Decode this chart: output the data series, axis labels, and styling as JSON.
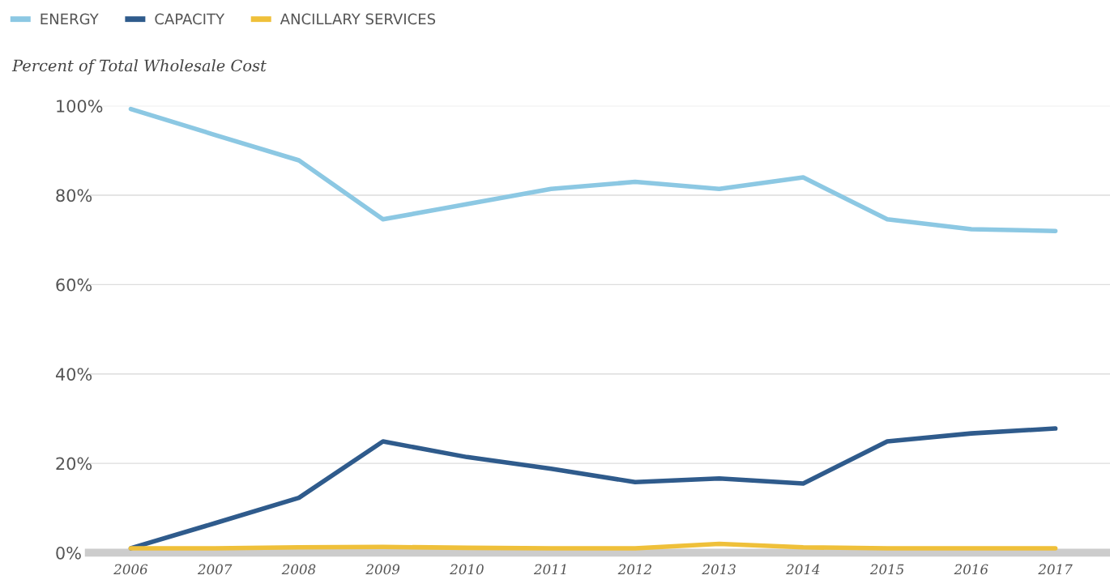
{
  "chart_data": {
    "type": "line",
    "ylabel": "Percent of Total Wholesale Cost",
    "categories": [
      "2006",
      "2007",
      "2008",
      "2009",
      "2010",
      "2011",
      "2012",
      "2013",
      "2014",
      "2015",
      "2016",
      "2017"
    ],
    "series": [
      {
        "name": "ENERGY",
        "color": "#8cc8e3",
        "values": [
          99.3,
          93.5,
          87.8,
          74.6,
          78,
          81.4,
          83,
          81.4,
          84,
          74.6,
          72.4,
          72
        ]
      },
      {
        "name": "CAPACITY",
        "color": "#2f5b8c",
        "values": [
          1,
          6.6,
          12.3,
          24.9,
          21.4,
          18.8,
          15.8,
          16.6,
          15.5,
          24.9,
          26.7,
          27.8
        ]
      },
      {
        "name": "ANCILLARY SERVICES",
        "color": "#efc03a",
        "values": [
          1,
          1,
          1.2,
          1.3,
          1.1,
          1,
          1,
          2,
          1.2,
          1,
          1,
          1
        ]
      }
    ],
    "ylim": [
      0,
      100
    ],
    "yticks": [
      {
        "value": 0,
        "label": "0%"
      },
      {
        "value": 20,
        "label": "20%"
      },
      {
        "value": 40,
        "label": "40%"
      },
      {
        "value": 60,
        "label": "60%"
      },
      {
        "value": 80,
        "label": "80%"
      },
      {
        "value": 100,
        "label": "100%"
      }
    ],
    "grid": "y",
    "legend": "top left",
    "marker": "none",
    "line_style": "solid"
  }
}
